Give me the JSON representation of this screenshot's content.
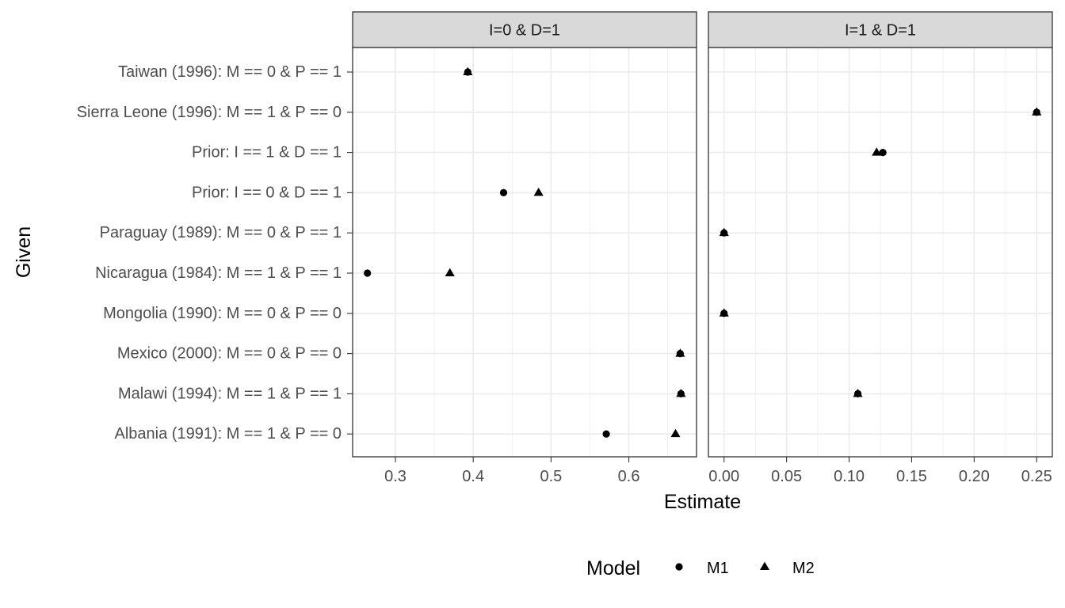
{
  "chart_data": {
    "type": "scatter",
    "xlabel": "Estimate",
    "ylabel": "Given",
    "categories": [
      "Albania (1991): M == 1 & P == 0",
      "Malawi (1994): M == 1 & P == 1",
      "Mexico (2000): M == 0 & P == 0",
      "Mongolia (1990): M == 0 & P == 0",
      "Nicaragua (1984): M == 1 & P == 1",
      "Paraguay (1989): M == 0 & P == 1",
      "Prior: I == 0  & D ==  1",
      "Prior: I == 1  & D ==  1",
      "Sierra Leone (1996): M == 1 & P == 0",
      "Taiwan (1996): M == 0 & P == 1"
    ],
    "grid": true,
    "legend": {
      "title": "Model",
      "position": "bottom",
      "entries": [
        {
          "name": "M1",
          "shape": "circle"
        },
        {
          "name": "M2",
          "shape": "triangle"
        }
      ]
    },
    "facets": [
      {
        "label": "I=0 & D=1",
        "xlim": [
          0.245,
          0.687
        ],
        "xticks": [
          0.3,
          0.4,
          0.5,
          0.6
        ],
        "xtick_labels": [
          "0.3",
          "0.4",
          "0.5",
          "0.6"
        ],
        "series": [
          {
            "name": "M1",
            "values": [
              0.571,
              0.667,
              0.666,
              null,
              0.264,
              null,
              0.439,
              null,
              null,
              0.393
            ]
          },
          {
            "name": "M2",
            "values": [
              0.66,
              0.667,
              0.666,
              null,
              0.37,
              null,
              0.484,
              null,
              null,
              0.393
            ]
          }
        ]
      },
      {
        "label": "I=1 & D=1",
        "xlim": [
          -0.0125,
          0.2625
        ],
        "xticks": [
          0.0,
          0.05,
          0.1,
          0.15,
          0.2,
          0.25
        ],
        "xtick_labels": [
          "0.00",
          "0.05",
          "0.10",
          "0.15",
          "0.20",
          "0.25"
        ],
        "series": [
          {
            "name": "M1",
            "values": [
              null,
              0.107,
              null,
              0.0,
              null,
              0.0,
              null,
              0.127,
              0.25,
              null
            ]
          },
          {
            "name": "M2",
            "values": [
              null,
              0.107,
              null,
              0.0,
              null,
              0.0,
              null,
              0.122,
              0.25,
              null
            ]
          }
        ]
      }
    ]
  }
}
